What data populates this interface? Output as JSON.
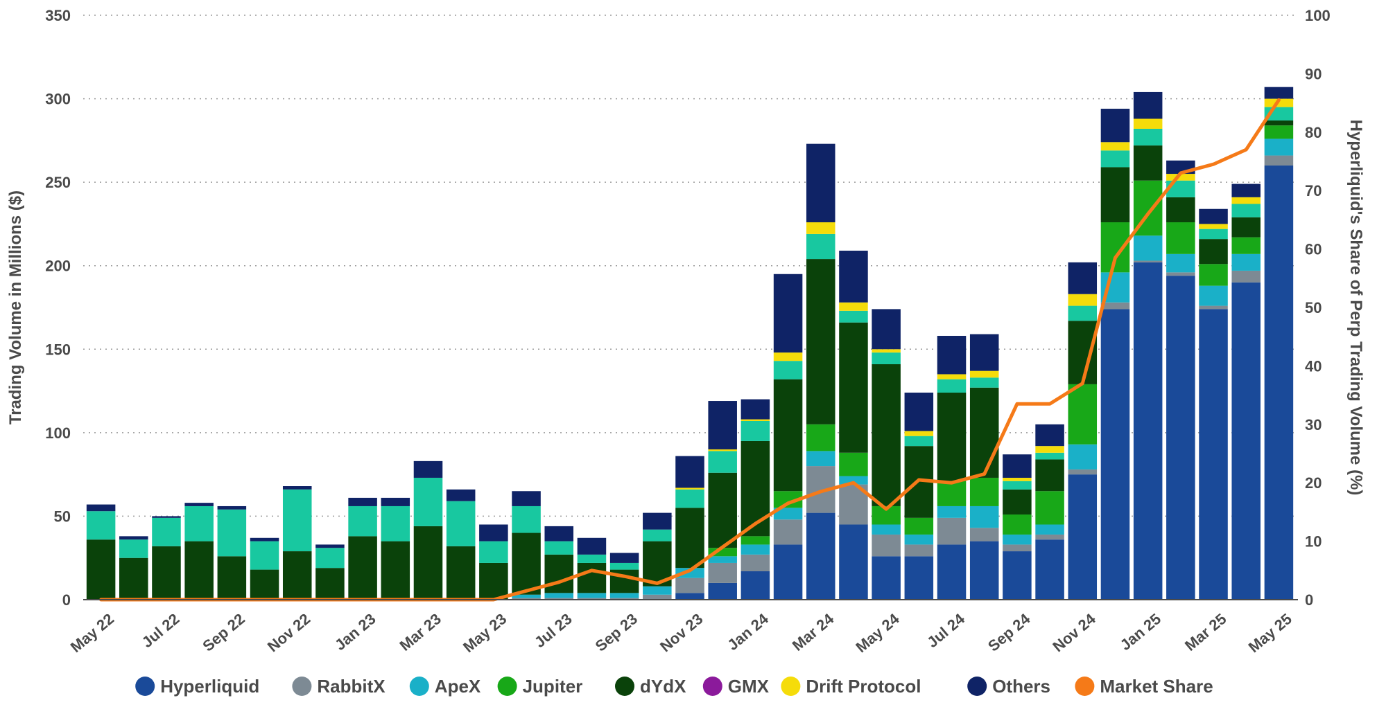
{
  "chart_data": {
    "type": "bar",
    "stacked": true,
    "categories": [
      "May 22",
      "Jun 22",
      "Jul 22",
      "Aug 22",
      "Sep 22",
      "Oct 22",
      "Nov 22",
      "Dec 22",
      "Jan 23",
      "Feb 23",
      "Mar 23",
      "Apr 23",
      "May 23",
      "Jun 23",
      "Jul 23",
      "Aug 23",
      "Sep 23",
      "Oct 23",
      "Nov 23",
      "Dec 23",
      "Jan 24",
      "Feb 24",
      "Mar 24",
      "Apr 24",
      "May 24",
      "Jun 24",
      "Jul 24",
      "Aug 24",
      "Sep 24",
      "Oct 24",
      "Nov 24",
      "Dec 24",
      "Jan 25",
      "Feb 25",
      "Mar 25",
      "Apr 25",
      "May 25"
    ],
    "tick_labels": [
      "May 22",
      "Jul 22",
      "Sep 22",
      "Nov 22",
      "Jan 23",
      "Mar 23",
      "May 23",
      "Jul 23",
      "Sep 23",
      "Nov 23",
      "Jan 24",
      "Mar 24",
      "May 24",
      "Jul 24",
      "Sep 24",
      "Nov 24",
      "Jan 25",
      "Mar 25",
      "May 25"
    ],
    "series": [
      {
        "name": "Hyperliquid",
        "color": "#1a4a99",
        "values": [
          0,
          0,
          0,
          0,
          0,
          0,
          0,
          0,
          0,
          0,
          0,
          0,
          0,
          0,
          0,
          0,
          0,
          0,
          4,
          10,
          17,
          33,
          52,
          45,
          26,
          26,
          33,
          35,
          29,
          36,
          75,
          174,
          202,
          194,
          174,
          190,
          260
        ]
      },
      {
        "name": "RabbitX",
        "color": "#7d8a94",
        "values": [
          0,
          0,
          0,
          0,
          0,
          0,
          0,
          0,
          0,
          0,
          0,
          0,
          0,
          1,
          1,
          1,
          1,
          3,
          9,
          12,
          10,
          15,
          28,
          24,
          13,
          7,
          16,
          8,
          4,
          3,
          3,
          4,
          1,
          2,
          2,
          7,
          6
        ]
      },
      {
        "name": "ApeX",
        "color": "#1ab0c8",
        "values": [
          0,
          0,
          0,
          0,
          0,
          0,
          0,
          0,
          0,
          0,
          0,
          0,
          0,
          2,
          3,
          3,
          3,
          5,
          6,
          4,
          6,
          7,
          9,
          5,
          6,
          6,
          7,
          13,
          6,
          6,
          15,
          18,
          15,
          11,
          12,
          10,
          10
        ]
      },
      {
        "name": "Jupiter",
        "color": "#18a818",
        "values": [
          0,
          0,
          0,
          0,
          0,
          0,
          0,
          0,
          0,
          0,
          0,
          0,
          0,
          0,
          0,
          0,
          0,
          0,
          0,
          5,
          5,
          10,
          16,
          14,
          11,
          10,
          15,
          17,
          12,
          20,
          36,
          30,
          33,
          19,
          13,
          10,
          8
        ]
      },
      {
        "name": "dYdX",
        "color": "#0a420a",
        "values": [
          36,
          25,
          32,
          35,
          26,
          18,
          29,
          19,
          38,
          35,
          44,
          32,
          22,
          37,
          23,
          18,
          14,
          27,
          36,
          45,
          57,
          67,
          99,
          78,
          85,
          43,
          53,
          54,
          15,
          19,
          38,
          33,
          21,
          15,
          15,
          12,
          3
        ]
      },
      {
        "name": "GMX",
        "color": "#8b1a9b",
        "values": [
          0,
          0,
          0,
          0,
          0,
          0,
          0,
          0,
          0,
          0,
          0,
          0,
          0,
          0,
          0,
          0,
          0,
          0,
          0,
          0,
          0,
          0,
          0,
          0,
          0,
          0,
          0,
          0,
          0,
          0,
          0,
          0,
          0,
          0,
          0,
          0,
          0
        ]
      },
      {
        "name": "Drift Protocol",
        "color": "#f5dc0a",
        "values": [
          0,
          0,
          0,
          0,
          0,
          0,
          0,
          0,
          0,
          0,
          0,
          0,
          0,
          0,
          0,
          0,
          0,
          0,
          1,
          1,
          1,
          5,
          7,
          5,
          2,
          3,
          3,
          4,
          2,
          4,
          7,
          5,
          6,
          4,
          3,
          4,
          5
        ]
      },
      {
        "name": "Others",
        "color": "#0f2366",
        "values": [
          4,
          2,
          1,
          2,
          2,
          2,
          2,
          2,
          5,
          5,
          10,
          7,
          10,
          9,
          9,
          10,
          6,
          10,
          19,
          29,
          12,
          47,
          47,
          31,
          24,
          23,
          23,
          22,
          14,
          13,
          19,
          20,
          16,
          8,
          9,
          8,
          7
        ]
      },
      {
        "name": "teal-segment",
        "color": "#18c8a0",
        "values": [
          17,
          11,
          17,
          21,
          28,
          17,
          37,
          12,
          18,
          21,
          29,
          27,
          13,
          16,
          8,
          5,
          4,
          7,
          11,
          13,
          12,
          11,
          15,
          7,
          7,
          6,
          8,
          6,
          5,
          4,
          9,
          10,
          10,
          10,
          6,
          8,
          8
        ]
      }
    ],
    "line_series": {
      "name": "Market Share",
      "color": "#f57a18",
      "axis": "right",
      "values": [
        0,
        0,
        0,
        0,
        0,
        0,
        0,
        0,
        0,
        0,
        0,
        0,
        0,
        1.5,
        3,
        5,
        4,
        2.8,
        5,
        9,
        13,
        16.5,
        18.5,
        20,
        15.5,
        20.5,
        20,
        21.5,
        33.5,
        33.5,
        37,
        58.5,
        66,
        73,
        74.5,
        77,
        85.5
      ]
    },
    "ylabel": "Trading Volume in Millions ($)",
    "y2label": "Hyperliquid's Share of Perp Trading Volume (%)",
    "ylim": [
      0,
      350
    ],
    "y_ticks": [
      0,
      50,
      100,
      150,
      200,
      250,
      300,
      350
    ],
    "y2lim": [
      0,
      100
    ],
    "y2_ticks": [
      0,
      10,
      20,
      30,
      40,
      50,
      60,
      70,
      80,
      90,
      100
    ],
    "grid": true,
    "legend_position": "bottom",
    "legend": [
      {
        "label": "Hyperliquid",
        "color": "#1a4a99"
      },
      {
        "label": "RabbitX",
        "color": "#7d8a94"
      },
      {
        "label": "ApeX",
        "color": "#1ab0c8"
      },
      {
        "label": "Jupiter",
        "color": "#18a818"
      },
      {
        "label": "dYdX",
        "color": "#0a420a"
      },
      {
        "label": "GMX",
        "color": "#8b1a9b"
      },
      {
        "label": "Drift Protocol",
        "color": "#f5dc0a"
      },
      {
        "label": "Others",
        "color": "#0f2366"
      },
      {
        "label": "Market Share",
        "color": "#f57a18"
      }
    ]
  }
}
